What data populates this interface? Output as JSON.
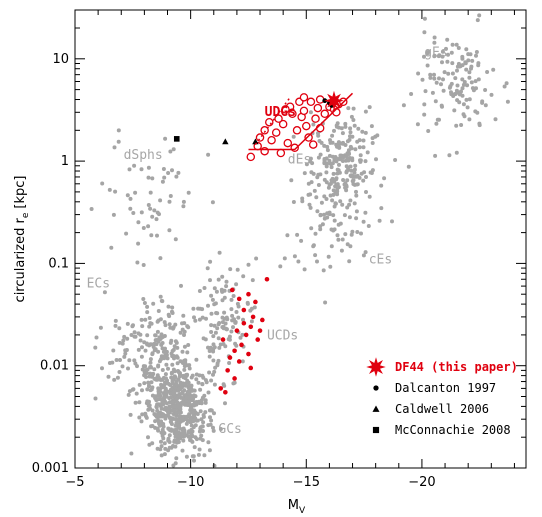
{
  "chart_data": {
    "type": "scatter",
    "xlabel": "M",
    "xlabel_sub": "V",
    "ylabel": "circularized r",
    "ylabel_sub": "e",
    "ylabel_unit": "[kpc]",
    "xlim": [
      -5,
      -24.5
    ],
    "ylim": [
      0.001,
      30
    ],
    "y_scale": "log",
    "x_ticks": [
      -5,
      -10,
      -15,
      -20
    ],
    "x_tick_labels": [
      "−5",
      "−10",
      "−15",
      "−20"
    ],
    "y_ticks": [
      0.001,
      0.01,
      0.1,
      1,
      10
    ],
    "y_tick_labels": [
      "0.001",
      "0.01",
      "0.1",
      "1",
      "10"
    ],
    "region_labels": [
      {
        "text": "gEs",
        "x": -20.1,
        "y": 10.5
      },
      {
        "text": "dSphs",
        "x": -7.1,
        "y": 1.05
      },
      {
        "text": "dEs",
        "x": -14.2,
        "y": 0.95
      },
      {
        "text": "cEs",
        "x": -17.7,
        "y": 0.1
      },
      {
        "text": "ECs",
        "x": -5.5,
        "y": 0.058
      },
      {
        "text": "UCDs",
        "x": -13.3,
        "y": 0.018
      },
      {
        "text": "GCs",
        "x": -11.2,
        "y": 0.0022
      }
    ],
    "udg_label": {
      "text": "UDGs",
      "x": -13.2,
      "y": 2.75
    },
    "colors": {
      "background_points": "#a5a5a5",
      "highlight": "#e0000f",
      "legend_marker": "#000000"
    },
    "series": [
      {
        "name": "DF44 (this paper)",
        "marker": "star",
        "color": "#e0000f",
        "points": [
          [
            -16.2,
            3.9
          ]
        ]
      },
      {
        "name": "Dalcanton 1997",
        "marker": "circle",
        "color": "#000000",
        "points": [
          [
            -15.8,
            3.9
          ],
          [
            -16.0,
            3.7
          ],
          [
            -16.1,
            3.5
          ]
        ]
      },
      {
        "name": "Caldwell 2006",
        "marker": "triangle",
        "color": "#000000",
        "points": [
          [
            -11.5,
            1.55
          ],
          [
            -12.8,
            1.55
          ]
        ]
      },
      {
        "name": "McConnachie 2008",
        "marker": "square",
        "color": "#000000",
        "points": [
          [
            -9.4,
            1.65
          ]
        ]
      },
      {
        "marker": "open-circle",
        "color": "#e0000f",
        "points": [
          [
            -12.6,
            1.1
          ],
          [
            -12.9,
            1.4
          ],
          [
            -13.2,
            1.25
          ],
          [
            -13.5,
            1.6
          ],
          [
            -13.2,
            2.0
          ],
          [
            -13.7,
            1.9
          ],
          [
            -14.0,
            2.3
          ],
          [
            -13.8,
            2.6
          ],
          [
            -14.2,
            1.5
          ],
          [
            -14.4,
            2.9
          ],
          [
            -14.3,
            3.4
          ],
          [
            -14.6,
            2.0
          ],
          [
            -14.8,
            2.7
          ],
          [
            -14.9,
            3.1
          ],
          [
            -15.0,
            2.2
          ],
          [
            -15.1,
            1.7
          ],
          [
            -15.2,
            3.8
          ],
          [
            -14.7,
            3.8
          ],
          [
            -15.4,
            2.6
          ],
          [
            -15.5,
            3.3
          ],
          [
            -15.6,
            2.1
          ],
          [
            -15.8,
            2.9
          ],
          [
            -16.0,
            3.4
          ],
          [
            -16.2,
            3.2
          ],
          [
            -16.4,
            3.6
          ],
          [
            -16.6,
            3.8
          ],
          [
            -15.3,
            1.45
          ],
          [
            -14.5,
            1.35
          ],
          [
            -13.9,
            1.2
          ],
          [
            -14.1,
            3.2
          ],
          [
            -13.4,
            2.4
          ],
          [
            -14.9,
            4.2
          ],
          [
            -15.6,
            4.0
          ],
          [
            -16.3,
            3.0
          ],
          [
            -13.0,
            1.7
          ]
        ]
      },
      {
        "marker": "filled-circle",
        "color": "#e0000f",
        "points": [
          [
            -11.8,
            0.055
          ],
          [
            -12.1,
            0.045
          ],
          [
            -12.5,
            0.05
          ],
          [
            -12.3,
            0.035
          ],
          [
            -12.7,
            0.03
          ],
          [
            -13.1,
            0.028
          ],
          [
            -12.6,
            0.024
          ],
          [
            -12.0,
            0.022
          ],
          [
            -12.4,
            0.02
          ],
          [
            -12.9,
            0.018
          ],
          [
            -12.2,
            0.016
          ],
          [
            -11.9,
            0.014
          ],
          [
            -12.5,
            0.013
          ],
          [
            -12.1,
            0.011
          ],
          [
            -11.6,
            0.009
          ],
          [
            -11.9,
            0.0075
          ],
          [
            -11.3,
            0.006
          ],
          [
            -11.5,
            0.0055
          ],
          [
            -12.8,
            0.042
          ],
          [
            -13.0,
            0.022
          ],
          [
            -12.3,
            0.026
          ],
          [
            -11.7,
            0.012
          ],
          [
            -12.6,
            0.0095
          ],
          [
            -13.3,
            0.07
          ],
          [
            -11.4,
            0.018
          ]
        ]
      }
    ],
    "udg_region": {
      "solid_polygon": [
        [
          -12.5,
          1.3
        ],
        [
          -14.5,
          1.3
        ],
        [
          -17.0,
          4.6
        ]
      ],
      "dotted_line": [
        [
          -12.8,
          1.45
        ],
        [
          -14.3,
          4.2
        ]
      ]
    },
    "background_scatter_groups": [
      {
        "name_hint": "GCs",
        "count": 520,
        "x_center": -9.4,
        "x_spread": 1.2,
        "logy_center": -2.42,
        "logy_spread": 0.22
      },
      {
        "name_hint": "GCs-upper",
        "count": 220,
        "x_center": -8.6,
        "x_spread": 1.9,
        "logy_center": -1.85,
        "logy_spread": 0.28
      },
      {
        "name_hint": "UCDs",
        "count": 110,
        "x_center": -11.6,
        "x_spread": 0.9,
        "logy_center": -1.55,
        "logy_spread": 0.28
      },
      {
        "name_hint": "dSphs",
        "count": 60,
        "x_center": -8.0,
        "x_spread": 2.2,
        "logy_center": -0.45,
        "logy_spread": 0.35
      },
      {
        "name_hint": "dEs",
        "count": 260,
        "x_center": -16.5,
        "x_spread": 1.3,
        "logy_center": -0.1,
        "logy_spread": 0.28
      },
      {
        "name_hint": "gEs",
        "count": 140,
        "x_center": -21.5,
        "x_spread": 1.4,
        "logy_center": 0.75,
        "logy_spread": 0.28
      },
      {
        "name_hint": "cEs",
        "count": 30,
        "x_center": -15.5,
        "x_spread": 1.5,
        "logy_center": -0.85,
        "logy_spread": 0.25
      }
    ]
  }
}
